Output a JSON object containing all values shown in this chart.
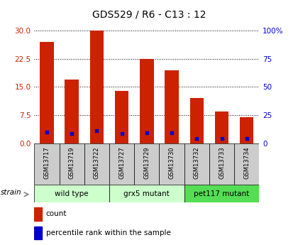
{
  "title": "GDS529 / R6 - C13 : 12",
  "samples": [
    "GSM13717",
    "GSM13719",
    "GSM13722",
    "GSM13727",
    "GSM13729",
    "GSM13730",
    "GSM13732",
    "GSM13733",
    "GSM13734"
  ],
  "count_values": [
    27.0,
    17.0,
    30.0,
    14.0,
    22.5,
    19.5,
    12.0,
    8.5,
    7.0
  ],
  "percentile_values": [
    10.0,
    8.5,
    11.5,
    8.5,
    9.5,
    9.5,
    4.5,
    4.5,
    4.5
  ],
  "bar_color": "#cc2200",
  "dot_color": "#0000cc",
  "ylim_left": [
    0,
    30
  ],
  "ylim_right": [
    0,
    100
  ],
  "yticks_left": [
    0,
    7.5,
    15,
    22.5,
    30
  ],
  "yticks_right": [
    0,
    25,
    50,
    75,
    100
  ],
  "ytick_labels_right": [
    "0",
    "25",
    "50",
    "75",
    "100%"
  ],
  "groups": [
    {
      "label": "wild type",
      "start": 0,
      "end": 3,
      "color": "#ccffcc"
    },
    {
      "label": "grx5 mutant",
      "start": 3,
      "end": 6,
      "color": "#ccffcc"
    },
    {
      "label": "pet117 mutant",
      "start": 6,
      "end": 9,
      "color": "#55dd55"
    }
  ],
  "strain_label": "strain",
  "legend_count": "count",
  "legend_percentile": "percentile rank within the sample",
  "bar_width": 0.55,
  "bg_color": "#ffffff",
  "plot_bg_color": "#ffffff",
  "tick_color_left": "#cc2200",
  "tick_color_right": "#0000cc",
  "label_area_color": "#cccccc",
  "title_fontsize": 10
}
